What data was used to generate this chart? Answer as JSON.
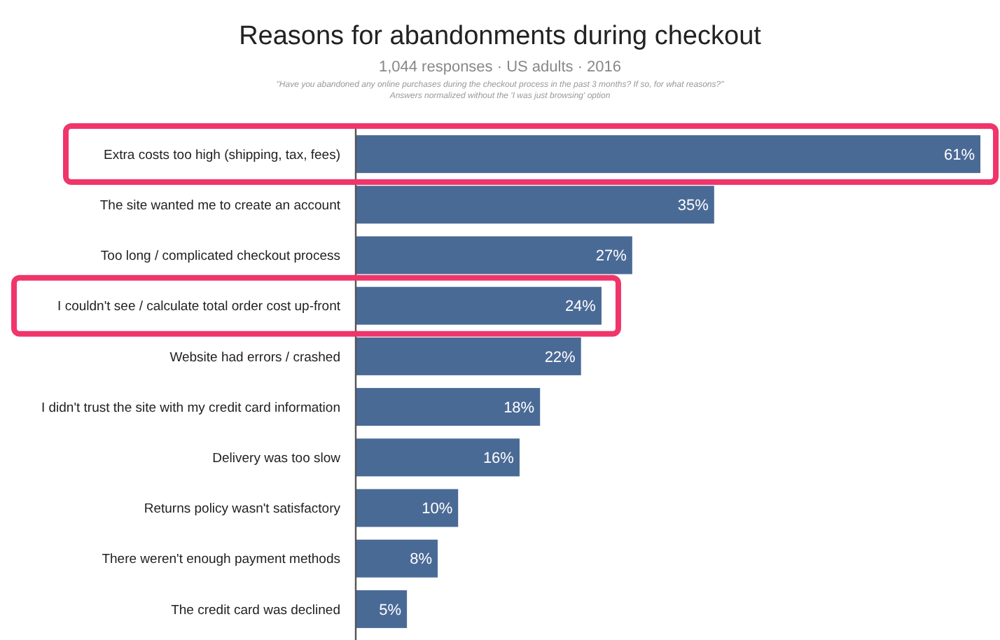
{
  "chart_data": {
    "type": "bar",
    "orientation": "horizontal",
    "title": "Reasons for abandonments during checkout",
    "subtitle": "1,044 responses · US adults · 2016",
    "annotations": [
      "\"Have you abandoned any online purchases during the checkout process in the past 3 months? If so, for what reasons?\"",
      "Answers normalized without the 'I was just browsing' option"
    ],
    "categories": [
      "Extra costs too high (shipping, tax, fees)",
      "The site wanted me to create an account",
      "Too long / complicated checkout process",
      "I couldn't see / calculate total order cost up-front",
      "Website had errors / crashed",
      "I didn't trust the site with my credit card information",
      "Delivery was too slow",
      "Returns policy wasn't satisfactory",
      "There weren't enough payment methods",
      "The credit card was declined"
    ],
    "values": [
      61,
      35,
      27,
      24,
      22,
      18,
      16,
      10,
      8,
      5
    ],
    "value_labels": [
      "61%",
      "35%",
      "27%",
      "24%",
      "22%",
      "18%",
      "16%",
      "10%",
      "8%",
      "5%"
    ],
    "color": "#4a6a96"
  }
}
